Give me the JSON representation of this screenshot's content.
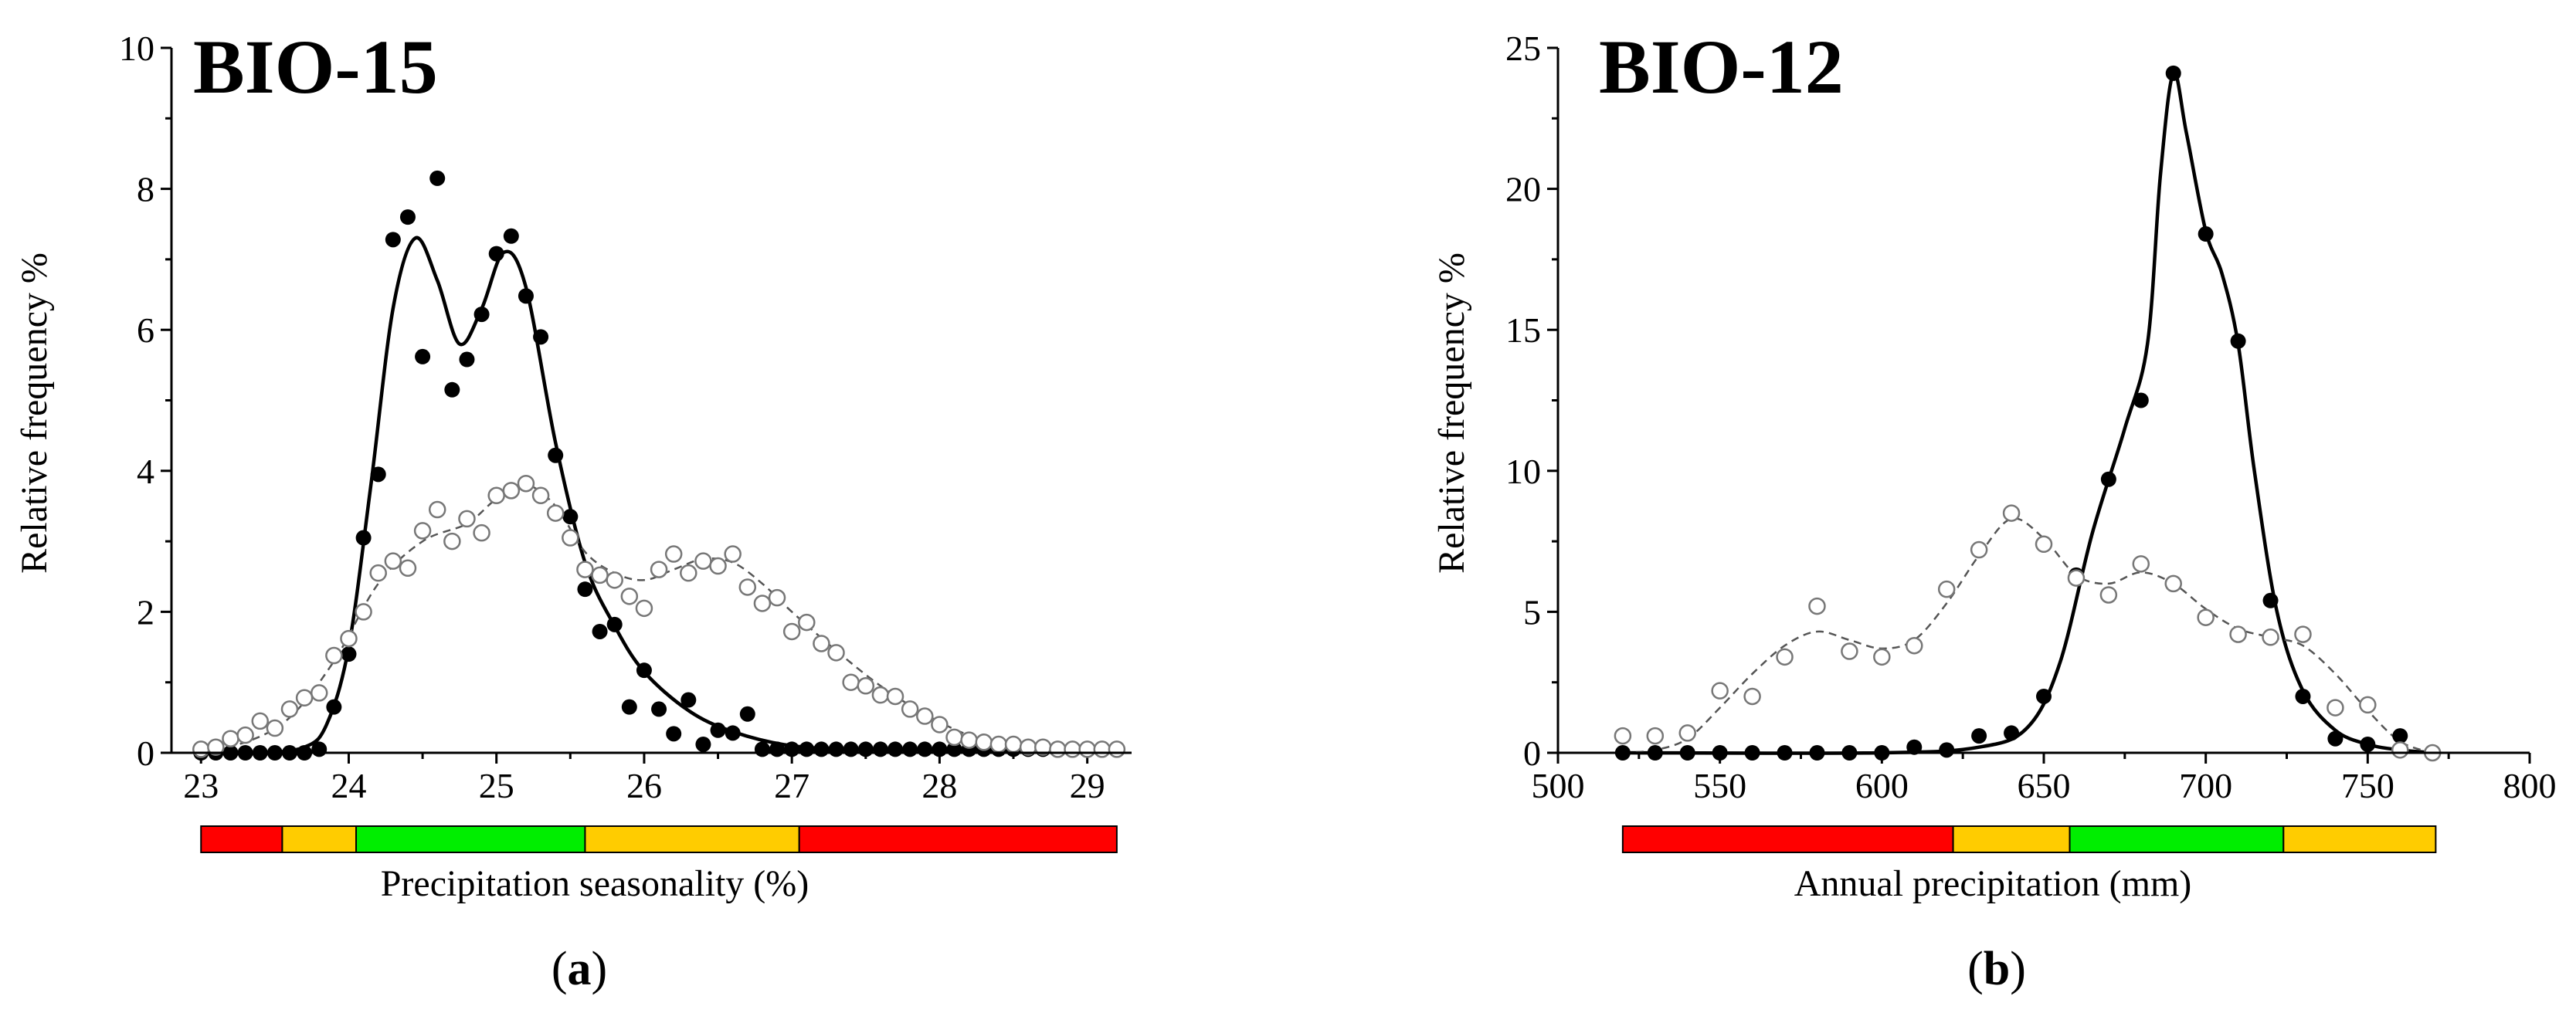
{
  "chart_data": [
    {
      "type": "scatter",
      "panel_label": "a",
      "title": "BIO-15",
      "xlabel": "Precipitation seasonality (%)",
      "ylabel": "Relative frequency %",
      "xlim": [
        22.8,
        29.3
      ],
      "ylim": [
        0,
        10
      ],
      "xticks": [
        "23",
        "24",
        "25",
        "26",
        "27",
        "28",
        "29"
      ],
      "yticks": [
        "0",
        "2",
        "4",
        "6",
        "8",
        "10"
      ],
      "colors": {
        "red": "#ff0000",
        "yellow": "#ffcc00",
        "green": "#00ee00"
      },
      "suitability_band": [
        {
          "from": 23.0,
          "to": 23.55,
          "color": "red"
        },
        {
          "from": 23.55,
          "to": 24.05,
          "color": "yellow"
        },
        {
          "from": 24.05,
          "to": 25.6,
          "color": "green"
        },
        {
          "from": 25.6,
          "to": 27.05,
          "color": "yellow"
        },
        {
          "from": 27.05,
          "to": 29.2,
          "color": "red"
        }
      ],
      "series": [
        {
          "name": "filled",
          "style": "filled-solid",
          "x": [
            23.0,
            23.1,
            23.2,
            23.3,
            23.4,
            23.5,
            23.6,
            23.7,
            23.8,
            23.9,
            24.0,
            24.1,
            24.2,
            24.3,
            24.4,
            24.5,
            24.6,
            24.7,
            24.8,
            24.9,
            25.0,
            25.1,
            25.2,
            25.3,
            25.4,
            25.5,
            25.6,
            25.7,
            25.8,
            25.9,
            26.0,
            26.1,
            26.2,
            26.3,
            26.4,
            26.5,
            26.6,
            26.7,
            26.8,
            26.9,
            27.0,
            27.1,
            27.2,
            27.3,
            27.4,
            27.5,
            27.6,
            27.7,
            27.8,
            27.9,
            28.0,
            28.1,
            28.2,
            28.3,
            28.4,
            28.5,
            28.6,
            28.7,
            28.8,
            28.9,
            29.0,
            29.1,
            29.2
          ],
          "y": [
            0.0,
            0.0,
            0.0,
            0.0,
            0.0,
            0.0,
            0.0,
            0.0,
            0.05,
            0.65,
            1.4,
            3.05,
            3.95,
            7.28,
            7.6,
            5.62,
            8.15,
            5.15,
            5.58,
            6.22,
            7.08,
            7.33,
            6.48,
            5.9,
            4.22,
            3.35,
            2.32,
            1.72,
            1.82,
            0.65,
            1.17,
            0.62,
            0.27,
            0.75,
            0.12,
            0.32,
            0.28,
            0.55,
            0.05,
            0.05,
            0.05,
            0.05,
            0.05,
            0.05,
            0.05,
            0.05,
            0.05,
            0.05,
            0.05,
            0.05,
            0.05,
            0.05,
            0.05,
            0.05,
            0.05,
            0.05,
            0.05,
            0.05,
            0.05,
            0.05,
            0.05,
            0.05,
            0.05
          ],
          "fit_x": [
            23.0,
            23.4,
            23.7,
            23.85,
            24.0,
            24.15,
            24.3,
            24.45,
            24.6,
            24.75,
            24.9,
            25.05,
            25.2,
            25.4,
            25.6,
            25.8,
            26.0,
            26.3,
            26.6,
            27.0,
            27.5,
            28.5,
            29.2
          ],
          "fit_y": [
            0.0,
            0.0,
            0.08,
            0.4,
            1.5,
            3.8,
            6.3,
            7.3,
            6.7,
            5.8,
            6.3,
            7.1,
            6.6,
            4.4,
            2.7,
            1.8,
            1.15,
            0.6,
            0.3,
            0.1,
            0.05,
            0.05,
            0.05
          ]
        },
        {
          "name": "open",
          "style": "open-dashed",
          "x": [
            23.0,
            23.1,
            23.2,
            23.3,
            23.4,
            23.5,
            23.6,
            23.7,
            23.8,
            23.9,
            24.0,
            24.1,
            24.2,
            24.3,
            24.4,
            24.5,
            24.6,
            24.7,
            24.8,
            24.9,
            25.0,
            25.1,
            25.2,
            25.3,
            25.4,
            25.5,
            25.6,
            25.7,
            25.8,
            25.9,
            26.0,
            26.1,
            26.2,
            26.3,
            26.4,
            26.5,
            26.6,
            26.7,
            26.8,
            26.9,
            27.0,
            27.1,
            27.2,
            27.3,
            27.4,
            27.5,
            27.6,
            27.7,
            27.8,
            27.9,
            28.0,
            28.1,
            28.2,
            28.3,
            28.4,
            28.5,
            28.6,
            28.7,
            28.8,
            28.9,
            29.0,
            29.1,
            29.2
          ],
          "y": [
            0.05,
            0.08,
            0.2,
            0.25,
            0.45,
            0.35,
            0.62,
            0.78,
            0.85,
            1.38,
            1.62,
            2.0,
            2.55,
            2.72,
            2.62,
            3.15,
            3.45,
            3.0,
            3.32,
            3.12,
            3.65,
            3.72,
            3.82,
            3.65,
            3.4,
            3.05,
            2.6,
            2.52,
            2.45,
            2.22,
            2.05,
            2.6,
            2.82,
            2.55,
            2.72,
            2.65,
            2.82,
            2.35,
            2.12,
            2.2,
            1.72,
            1.85,
            1.55,
            1.42,
            1.0,
            0.95,
            0.82,
            0.8,
            0.62,
            0.52,
            0.4,
            0.22,
            0.18,
            0.15,
            0.12,
            0.12,
            0.08,
            0.08,
            0.05,
            0.05,
            0.05,
            0.05,
            0.05
          ],
          "fit_x": [
            23.0,
            23.3,
            23.6,
            23.9,
            24.2,
            24.5,
            24.8,
            25.0,
            25.2,
            25.4,
            25.6,
            25.8,
            26.0,
            26.2,
            26.4,
            26.6,
            26.8,
            27.0,
            27.3,
            27.6,
            27.9,
            28.2,
            28.5,
            28.8,
            29.2
          ],
          "fit_y": [
            0.05,
            0.15,
            0.5,
            1.3,
            2.4,
            3.0,
            3.25,
            3.6,
            3.8,
            3.5,
            2.85,
            2.55,
            2.45,
            2.6,
            2.75,
            2.7,
            2.4,
            2.0,
            1.45,
            0.95,
            0.55,
            0.25,
            0.12,
            0.06,
            0.05
          ]
        }
      ]
    },
    {
      "type": "scatter",
      "panel_label": "b",
      "title": "BIO-12",
      "xlabel": "Annual precipitation (mm)",
      "ylabel": "Relative frequency %",
      "xlim": [
        500,
        800
      ],
      "ylim": [
        0,
        25
      ],
      "xticks": [
        "500",
        "550",
        "600",
        "650",
        "700",
        "750",
        "800"
      ],
      "yticks": [
        "0",
        "5",
        "10",
        "15",
        "20",
        "25"
      ],
      "colors": {
        "red": "#ff0000",
        "yellow": "#ffcc00",
        "green": "#00ee00"
      },
      "suitability_band": [
        {
          "from": 520,
          "to": 622,
          "color": "red"
        },
        {
          "from": 622,
          "to": 658,
          "color": "yellow"
        },
        {
          "from": 658,
          "to": 724,
          "color": "green"
        },
        {
          "from": 724,
          "to": 771,
          "color": "yellow"
        }
      ],
      "series": [
        {
          "name": "filled",
          "style": "filled-solid",
          "x": [
            520,
            530,
            540,
            550,
            560,
            570,
            580,
            590,
            600,
            610,
            620,
            630,
            640,
            650,
            660,
            670,
            680,
            690,
            700,
            710,
            720,
            730,
            740,
            750,
            760,
            770
          ],
          "y": [
            0.0,
            0.0,
            0.0,
            0.0,
            0.0,
            0.0,
            0.0,
            0.0,
            0.0,
            0.2,
            0.1,
            0.6,
            0.7,
            2.0,
            6.3,
            9.7,
            12.5,
            24.1,
            18.4,
            14.6,
            5.4,
            2.0,
            0.5,
            0.3,
            0.6,
            0.0
          ],
          "fit_x": [
            520,
            600,
            630,
            645,
            655,
            665,
            675,
            682,
            686,
            690,
            694,
            700,
            705,
            710,
            715,
            722,
            730,
            740,
            750,
            760,
            771
          ],
          "fit_y": [
            0.0,
            0.0,
            0.2,
            0.9,
            3.2,
            7.8,
            11.5,
            14.5,
            20.5,
            24.1,
            22.0,
            18.5,
            17.0,
            14.5,
            10.0,
            5.0,
            2.2,
            0.8,
            0.3,
            0.1,
            0.0
          ],
          "fit_marker": {
            "x": 690,
            "y": 24.1
          }
        },
        {
          "name": "open",
          "style": "open-dashed",
          "x": [
            520,
            530,
            540,
            550,
            560,
            570,
            580,
            590,
            600,
            610,
            620,
            630,
            640,
            650,
            660,
            670,
            680,
            690,
            700,
            710,
            720,
            730,
            740,
            750,
            760,
            770
          ],
          "y": [
            0.6,
            0.6,
            0.7,
            2.2,
            2.0,
            3.4,
            5.2,
            3.6,
            3.4,
            3.8,
            5.8,
            7.2,
            8.5,
            7.4,
            6.2,
            5.6,
            6.7,
            6.0,
            4.8,
            4.2,
            4.1,
            4.2,
            1.6,
            1.7,
            0.1,
            0.0
          ],
          "fit_x": [
            520,
            530,
            540,
            550,
            560,
            570,
            580,
            590,
            600,
            610,
            620,
            630,
            640,
            650,
            660,
            670,
            680,
            690,
            700,
            710,
            720,
            730,
            740,
            750,
            760,
            770
          ],
          "fit_y": [
            0.0,
            0.1,
            0.5,
            1.6,
            2.8,
            3.8,
            4.3,
            4.0,
            3.7,
            4.0,
            5.3,
            7.0,
            8.3,
            7.6,
            6.3,
            6.0,
            6.4,
            6.0,
            5.1,
            4.4,
            4.1,
            3.8,
            2.8,
            1.5,
            0.4,
            0.0
          ]
        }
      ]
    }
  ]
}
